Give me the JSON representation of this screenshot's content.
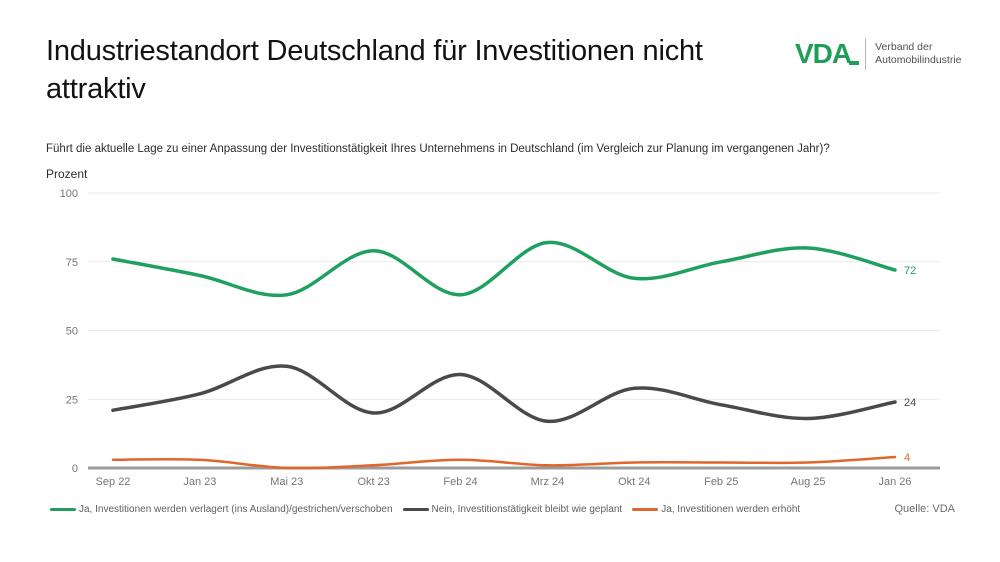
{
  "header": {
    "title": "Industriestandort Deutschland für Investitionen nicht attraktiv",
    "logo": {
      "wordmark": "VDA",
      "tagline": [
        "Verband der",
        "Automobilindustrie"
      ],
      "brand_color": "#1F9E58"
    }
  },
  "subtitle": "Führt die aktuelle Lage zu einer Anpassung der Investitionstätigkeit Ihres Unternehmens in Deutschland (im Vergleich zur Planung im vergangenen Jahr)?",
  "axis": {
    "unit_label": "Prozent"
  },
  "source": "Quelle: VDA",
  "colors": {
    "grid": "#e9e9e9",
    "baseline": "#9b9b9b",
    "tick_text": "#757575"
  },
  "chart_data": {
    "type": "line",
    "title": "Industriestandort Deutschland für Investitionen nicht attraktiv",
    "categories": [
      "Sep 22",
      "Jan 23",
      "Mai 23",
      "Okt 23",
      "Feb 24",
      "Mrz 24",
      "Okt 24",
      "Feb 25",
      "Aug 25",
      "Jan 26"
    ],
    "series": [
      {
        "name": "Ja, Investitionen werden verlagert (ins Ausland)/gestrichen/verschoben",
        "color": "#1FA05E",
        "values": [
          76,
          70,
          63,
          79,
          63,
          82,
          69,
          75,
          80,
          72
        ],
        "end_label": "72"
      },
      {
        "name": "Nein, Investitionstätigkeit bleibt wie geplant",
        "color": "#4A4A4A",
        "values": [
          21,
          27,
          37,
          20,
          34,
          17,
          29,
          23,
          18,
          24
        ],
        "end_label": "24"
      },
      {
        "name": "Ja, Investitionen werden erhöht",
        "color": "#E1662B",
        "values": [
          3,
          3,
          0,
          1,
          3,
          1,
          2,
          2,
          2,
          4
        ],
        "end_label": "4"
      }
    ],
    "xlabel": "",
    "ylabel": "Prozent",
    "ylim": [
      0,
      100
    ],
    "yticks": [
      0,
      25,
      50,
      75,
      100
    ],
    "grid": true,
    "legend_position": "bottom"
  }
}
